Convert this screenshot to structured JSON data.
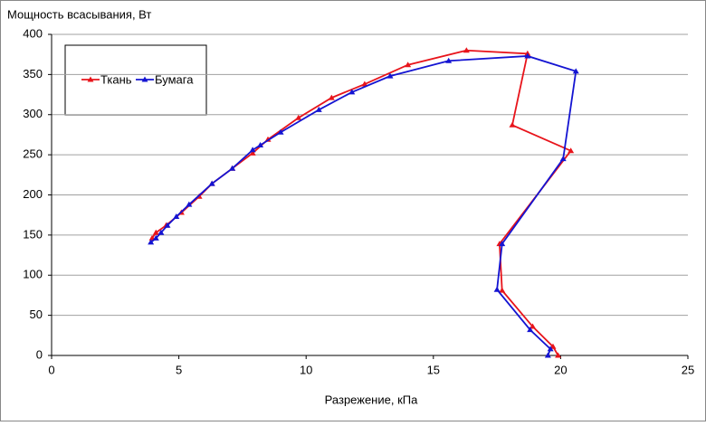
{
  "chart_data": {
    "type": "line",
    "title": "Мощность всасывания, Вт",
    "x_label": "Разрежение, кПа",
    "xlim": [
      0,
      25
    ],
    "xticks": [
      0,
      5,
      10,
      15,
      20,
      25
    ],
    "ylim": [
      0,
      400
    ],
    "yticks": [
      0,
      50,
      100,
      150,
      200,
      250,
      300,
      350,
      400
    ],
    "grid": true,
    "legend": "top-left",
    "series": [
      {
        "name": "Ткань",
        "color": "#e8141b",
        "x": [
          19.9,
          19.7,
          18.9,
          17.7,
          17.6,
          20.4,
          18.1,
          18.7,
          16.3,
          14.0,
          12.3,
          11.0,
          9.7,
          8.5,
          7.9,
          7.1,
          6.3,
          5.8,
          5.1,
          4.5,
          4.1,
          3.95
        ],
        "values": [
          0,
          11,
          36,
          81,
          139,
          255,
          287,
          376,
          380,
          362,
          338,
          321,
          296,
          269,
          252,
          233,
          214,
          198,
          178,
          162,
          153,
          146
        ]
      },
      {
        "name": "Бумага",
        "color": "#1414d2",
        "x": [
          19.5,
          19.6,
          18.8,
          17.5,
          17.7,
          20.1,
          20.6,
          18.7,
          15.6,
          13.3,
          11.8,
          10.5,
          9.0,
          8.2,
          7.9,
          7.1,
          6.3,
          5.4,
          4.9,
          4.55,
          4.3,
          4.1,
          3.9
        ],
        "values": [
          0,
          8,
          32,
          82,
          139,
          245,
          354,
          373,
          367,
          348,
          328,
          306,
          278,
          262,
          256,
          233,
          214,
          188,
          173,
          162,
          153,
          146,
          141
        ]
      }
    ]
  }
}
